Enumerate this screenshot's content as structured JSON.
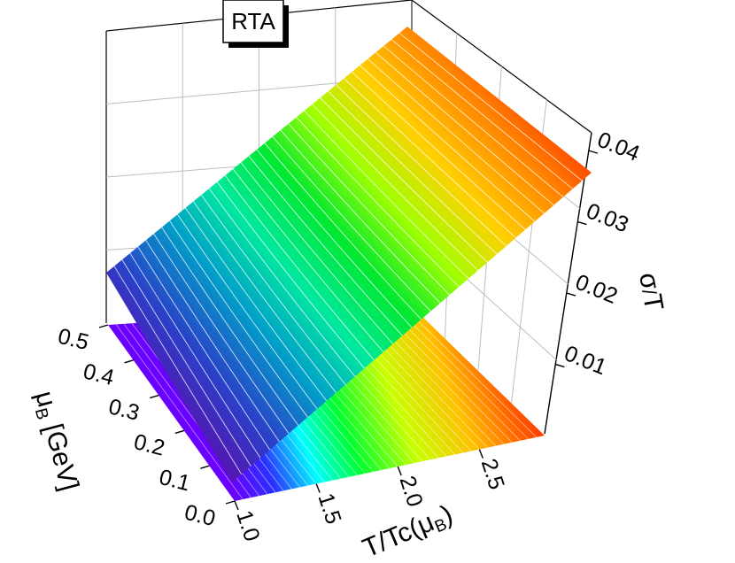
{
  "chart_data": {
    "type": "surface3d",
    "title": "RTA",
    "x_axis": {
      "label_main": "T/Tc(μ",
      "label_sub": "B",
      "label_close": ")",
      "range": [
        1.0,
        2.9
      ],
      "ticks": [
        "1.0",
        "1.5",
        "2.0",
        "2.5"
      ]
    },
    "y_axis": {
      "label_main": "μ",
      "label_sub": "B",
      "label_rest": " [GeV]",
      "range": [
        0.0,
        0.5
      ],
      "ticks": [
        "0.0",
        "0.1",
        "0.2",
        "0.3",
        "0.4",
        "0.5"
      ]
    },
    "z_axis": {
      "label_main": "σ",
      "label_sub": "/",
      "label_rest": "T",
      "range": [
        0.0,
        0.04
      ],
      "ticks": [
        "0.01",
        "0.02",
        "0.03",
        "0.04"
      ]
    },
    "surface_corners": {
      "x": [
        1.0,
        2.9
      ],
      "y": [
        0.0,
        0.5
      ],
      "z_at_x_min": 0.0,
      "z_at_x_max": 0.035
    },
    "colormap": [
      "#6a00c8",
      "#3a3aff",
      "#00b0ff",
      "#00ffff",
      "#00ff40",
      "#b0ff00",
      "#ffff00",
      "#ffa000",
      "#ff2000"
    ],
    "grid": true
  }
}
